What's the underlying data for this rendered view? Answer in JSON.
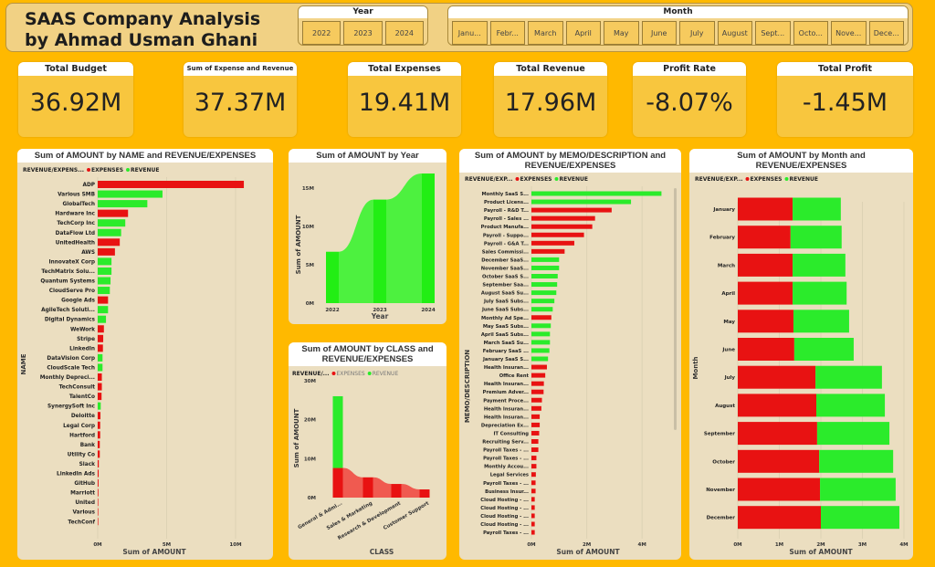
{
  "header": {
    "title_line1": "SAAS Company Analysis",
    "title_line2": "by Ahmad Usman Ghani"
  },
  "year_slicer": {
    "label": "Year",
    "options": [
      "2022",
      "2023",
      "2024"
    ]
  },
  "month_slicer": {
    "label": "Month",
    "options": [
      "Janu...",
      "Febr...",
      "March",
      "April",
      "May",
      "June",
      "July",
      "August",
      "Sept...",
      "Octo...",
      "Nove...",
      "Dece..."
    ]
  },
  "kpis": [
    {
      "label": "Total Budget",
      "value": "36.92M"
    },
    {
      "label": "Sum of Expense and Revenue",
      "value": "37.37M"
    },
    {
      "label": "Total Expenses",
      "value": "19.41M"
    },
    {
      "label": "Total Revenue",
      "value": "17.96M"
    },
    {
      "label": "Profit Rate",
      "value": "-8.07%"
    },
    {
      "label": "Total Profit",
      "value": "-1.45M"
    }
  ],
  "colors": {
    "expenses": "#E81212",
    "revenue": "#2BEB2B",
    "background": "#FFB900",
    "panel": "#EBDEC0"
  },
  "chart_data": [
    {
      "id": "name",
      "type": "bar",
      "orientation": "horizontal",
      "title": "Sum of AMOUNT by NAME and REVENUE/EXPENSES",
      "legend_title": "REVENUE/EXPENS...",
      "legend": [
        "EXPENSES",
        "REVENUE"
      ],
      "xlabel": "Sum of AMOUNT",
      "ylabel": "NAME",
      "xticks": [
        "0M",
        "5M",
        "10M"
      ],
      "xlim": [
        0,
        11.5
      ],
      "unit": "M",
      "categories": [
        "ADP",
        "Various SMB",
        "GlobalTech",
        "Hardware Inc",
        "TechCorp Inc",
        "DataFlow Ltd",
        "UnitedHealth",
        "AWS",
        "InnovateX Corp",
        "TechMatrix Solu...",
        "Quantum Systems",
        "CloudServe Pro",
        "Google Ads",
        "AgileTech Soluti...",
        "Digital Dynamics",
        "WeWork",
        "Stripe",
        "LinkedIn",
        "DataVision Corp",
        "CloudScale Tech",
        "Monthly Depreci...",
        "TechConsult",
        "TalentCo",
        "SynergySoft Inc",
        "Deloitte",
        "Legal Corp",
        "Hartford",
        "Bank",
        "Utility Co",
        "Slack",
        "LinkedIn Ads",
        "GitHub",
        "Marriott",
        "United",
        "Various",
        "TechConf"
      ],
      "values": [
        10.6,
        4.7,
        3.6,
        2.2,
        2.0,
        1.7,
        1.6,
        1.25,
        1.0,
        1.0,
        0.93,
        0.88,
        0.75,
        0.75,
        0.6,
        0.45,
        0.4,
        0.38,
        0.35,
        0.35,
        0.3,
        0.3,
        0.28,
        0.22,
        0.2,
        0.18,
        0.18,
        0.15,
        0.15,
        0.08,
        0.07,
        0.06,
        0.05,
        0.02,
        0.01,
        0.01
      ],
      "series_type": [
        "EXPENSES",
        "REVENUE",
        "REVENUE",
        "EXPENSES",
        "REVENUE",
        "REVENUE",
        "EXPENSES",
        "EXPENSES",
        "REVENUE",
        "REVENUE",
        "REVENUE",
        "REVENUE",
        "EXPENSES",
        "REVENUE",
        "REVENUE",
        "EXPENSES",
        "EXPENSES",
        "EXPENSES",
        "REVENUE",
        "REVENUE",
        "EXPENSES",
        "EXPENSES",
        "EXPENSES",
        "REVENUE",
        "EXPENSES",
        "EXPENSES",
        "EXPENSES",
        "EXPENSES",
        "EXPENSES",
        "EXPENSES",
        "EXPENSES",
        "EXPENSES",
        "EXPENSES",
        "EXPENSES",
        "EXPENSES",
        "EXPENSES"
      ]
    },
    {
      "id": "year",
      "type": "bar",
      "title": "Sum of AMOUNT by Year",
      "xlabel": "Year",
      "ylabel": "Sum of AMOUNT",
      "yticks": [
        "0M",
        "5M",
        "10M",
        "15M"
      ],
      "ylim": [
        0,
        18
      ],
      "unit": "M",
      "categories": [
        "2022",
        "2023",
        "2024"
      ],
      "values": [
        6.7,
        13.5,
        16.9
      ]
    },
    {
      "id": "class",
      "type": "bar",
      "stacked": true,
      "title": "Sum of AMOUNT by CLASS and REVENUE/EXPENSES",
      "legend_title": "REVENUE/...",
      "legend": [
        "EXPENSES",
        "REVENUE"
      ],
      "xlabel": "CLASS",
      "ylabel": "Sum of AMOUNT",
      "yticks": [
        "0M",
        "10M",
        "20M",
        "30M"
      ],
      "ylim": [
        0,
        30
      ],
      "unit": "M",
      "categories": [
        "General & Admi...",
        "Sales & Marketing",
        "Research & Development",
        "Customer Support"
      ],
      "series": [
        {
          "name": "EXPENSES",
          "values": [
            7.6,
            5.2,
            3.5,
            2.1
          ]
        },
        {
          "name": "REVENUE",
          "values": [
            18.4,
            0,
            0,
            0
          ]
        }
      ]
    },
    {
      "id": "memo",
      "type": "bar",
      "orientation": "horizontal",
      "title": "Sum of AMOUNT by MEMO/DESCRIPTION and REVENUE/EXPENSES",
      "legend_title": "REVENUE/EXP...",
      "legend": [
        "EXPENSES",
        "REVENUE"
      ],
      "xlabel": "Sum of AMOUNT",
      "ylabel": "MEMO/DESCRIPTION",
      "xticks": [
        "0M",
        "2M",
        "4M"
      ],
      "xlim": [
        0,
        5.2
      ],
      "unit": "M",
      "categories": [
        "Monthly SaaS S...",
        "Product Licens...",
        "Payroll - R&D T...",
        "Payroll - Sales ...",
        "Product Manufa...",
        "Payroll - Suppo...",
        "Payroll - G&A T...",
        "Sales Commissi...",
        "December SaaS...",
        "November SaaS...",
        "October SaaS S...",
        "September Saa...",
        "August SaaS Su...",
        "July SaaS Subs...",
        "June SaaS Subs...",
        "Monthly Ad Spe...",
        "May SaaS Subs...",
        "April SaaS Subs...",
        "March SaaS Su...",
        "February SaaS ...",
        "January SaaS S...",
        "Health Insuran...",
        "Office Rent",
        "Health Insuran...",
        "Premium Adver...",
        "Payment Proce...",
        "Health Insuran...",
        "Health Insuran...",
        "Depreciation Ex...",
        "IT Consulting",
        "Recruiting Serv...",
        "Payroll Taxes - ...",
        "Payroll Taxes - ...",
        "Monthly Accou...",
        "Legal Services",
        "Payroll Taxes - ...",
        "Business Insur...",
        "Cloud Hosting - ...",
        "Cloud Hosting - ...",
        "Cloud Hosting - ...",
        "Cloud Hosting - ...",
        "Payroll Taxes - ..."
      ],
      "values": [
        4.7,
        3.6,
        2.9,
        2.3,
        2.2,
        1.9,
        1.55,
        1.2,
        1.0,
        1.0,
        0.95,
        0.93,
        0.9,
        0.83,
        0.77,
        0.72,
        0.7,
        0.67,
        0.67,
        0.65,
        0.6,
        0.56,
        0.5,
        0.45,
        0.44,
        0.38,
        0.36,
        0.3,
        0.3,
        0.28,
        0.25,
        0.25,
        0.18,
        0.18,
        0.16,
        0.15,
        0.15,
        0.12,
        0.12,
        0.12,
        0.12,
        0.12
      ],
      "series_type": [
        "REVENUE",
        "REVENUE",
        "EXPENSES",
        "EXPENSES",
        "EXPENSES",
        "EXPENSES",
        "EXPENSES",
        "EXPENSES",
        "REVENUE",
        "REVENUE",
        "REVENUE",
        "REVENUE",
        "REVENUE",
        "REVENUE",
        "REVENUE",
        "EXPENSES",
        "REVENUE",
        "REVENUE",
        "REVENUE",
        "REVENUE",
        "REVENUE",
        "EXPENSES",
        "EXPENSES",
        "EXPENSES",
        "EXPENSES",
        "EXPENSES",
        "EXPENSES",
        "EXPENSES",
        "EXPENSES",
        "EXPENSES",
        "EXPENSES",
        "EXPENSES",
        "EXPENSES",
        "EXPENSES",
        "EXPENSES",
        "EXPENSES",
        "EXPENSES",
        "EXPENSES",
        "EXPENSES",
        "EXPENSES",
        "EXPENSES",
        "EXPENSES"
      ]
    },
    {
      "id": "month",
      "type": "bar",
      "orientation": "horizontal",
      "stacked": true,
      "title": "Sum of AMOUNT by Month and REVENUE/EXPENSES",
      "legend_title": "REVENUE/EXP...",
      "legend": [
        "EXPENSES",
        "REVENUE"
      ],
      "xlabel": "Sum of AMOUNT",
      "ylabel": "Month",
      "xticks": [
        "0M",
        "1M",
        "2M",
        "3M",
        "4M"
      ],
      "xlim": [
        0,
        4
      ],
      "unit": "M",
      "categories": [
        "January",
        "February",
        "March",
        "April",
        "May",
        "June",
        "July",
        "August",
        "September",
        "October",
        "November",
        "December"
      ],
      "series": [
        {
          "name": "EXPENSES",
          "values": [
            1.32,
            1.27,
            1.32,
            1.32,
            1.34,
            1.36,
            1.87,
            1.89,
            1.91,
            1.96,
            1.98,
            2.0
          ]
        },
        {
          "name": "REVENUE",
          "values": [
            1.16,
            1.23,
            1.27,
            1.3,
            1.34,
            1.43,
            1.6,
            1.65,
            1.74,
            1.78,
            1.82,
            1.89
          ]
        }
      ]
    }
  ]
}
